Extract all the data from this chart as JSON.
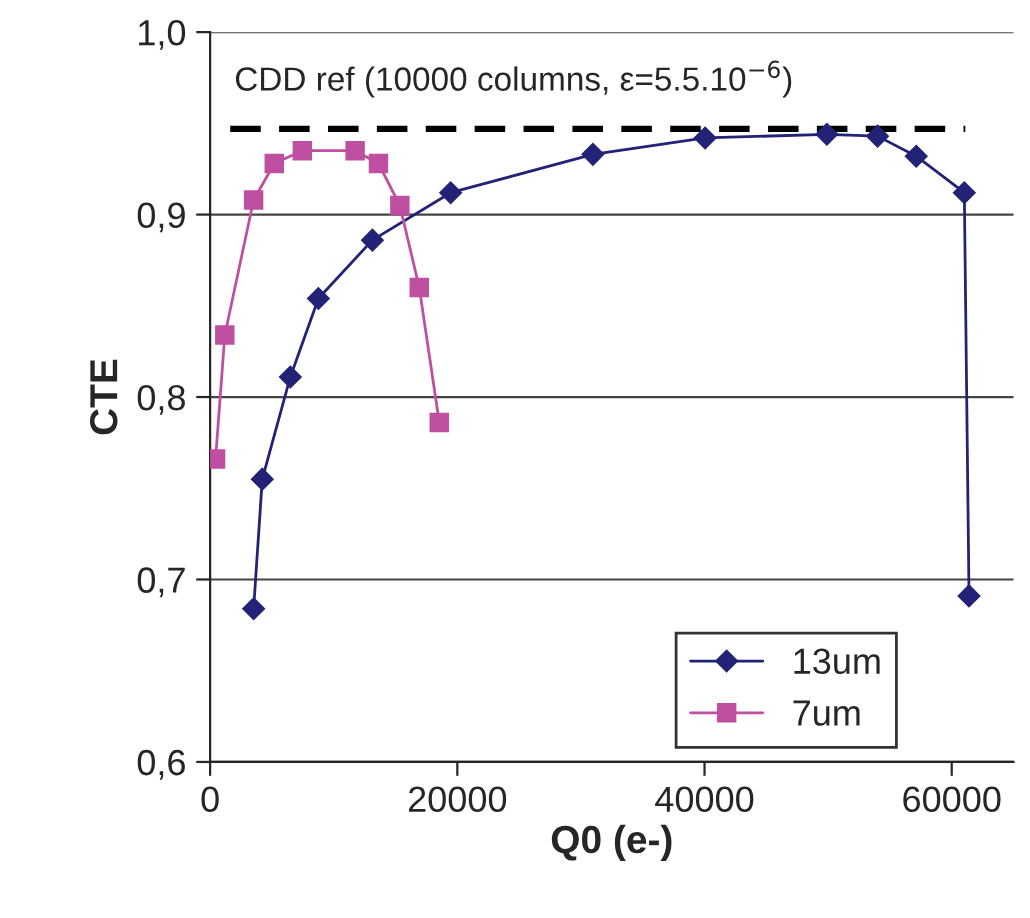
{
  "chart_data": {
    "type": "line",
    "xlabel": "Q0 (e-)",
    "ylabel": "CTE",
    "xlim": [
      0,
      65000
    ],
    "xticks": [
      0,
      20000,
      40000,
      60000
    ],
    "ylim": [
      0.6,
      1.0
    ],
    "yticks": [
      {
        "value": 0.6,
        "label": "0,6"
      },
      {
        "value": 0.7,
        "label": "0,7"
      },
      {
        "value": 0.8,
        "label": "0,8"
      },
      {
        "value": 0.9,
        "label": "0,9"
      },
      {
        "value": 1.0,
        "label": "1,0"
      }
    ],
    "grid": "y",
    "legend": "bottom right",
    "line_style": "solid",
    "series": [
      {
        "name": "13um",
        "color": "#222277",
        "marker": "diamond",
        "x": [
          3520,
          4220,
          6490,
          8760,
          13130,
          19460,
          30970,
          40050,
          49900,
          54000,
          57130,
          61020,
          61400
        ],
        "values": [
          0.684,
          0.755,
          0.811,
          0.854,
          0.886,
          0.912,
          0.933,
          0.942,
          0.944,
          0.943,
          0.932,
          0.912,
          0.691
        ]
      },
      {
        "name": "7um",
        "color": "#bf4fa0",
        "marker": "square",
        "x": [
          440,
          1190,
          3520,
          5190,
          7460,
          11730,
          13620,
          15350,
          16920,
          18540
        ],
        "values": [
          0.766,
          0.834,
          0.908,
          0.928,
          0.935,
          0.935,
          0.928,
          0.905,
          0.86,
          0.786
        ]
      }
    ],
    "ref_lines": [
      {
        "axis": "y",
        "value": 0.947,
        "color": "#000000",
        "line_style": "dashed"
      }
    ],
    "annotations": [
      "CDD ref (10000 columns, ε=5.5.10$^{−6}$)"
    ]
  }
}
